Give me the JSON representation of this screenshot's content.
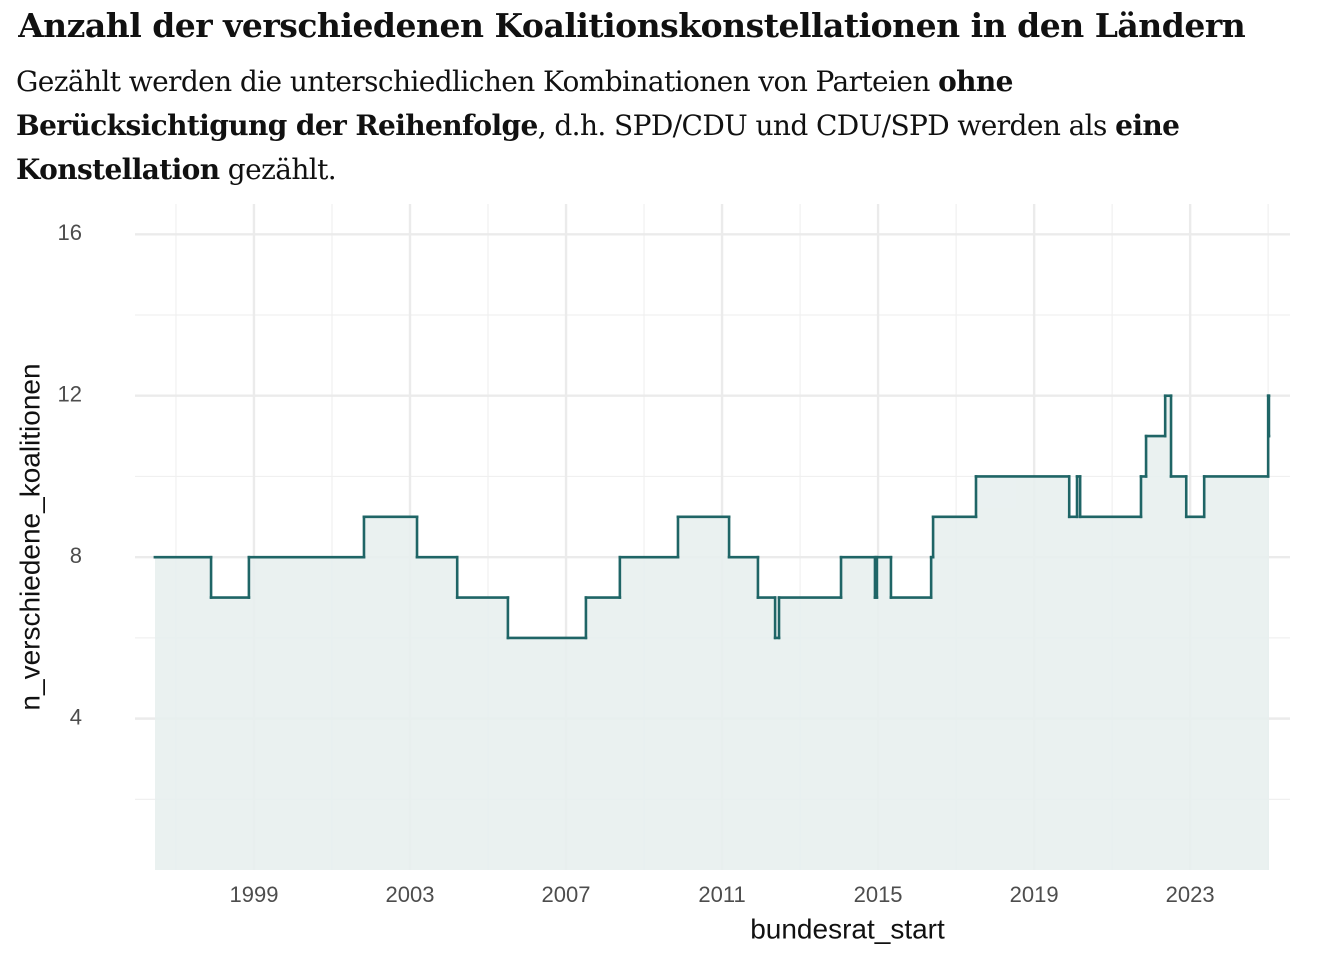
{
  "chart_data": {
    "type": "step-area",
    "title": "Anzahl der verschiedenen Koalitionskonstellationen in den Ländern",
    "subtitle": [
      [
        {
          "text": "Gezählt werden die unterschiedlichen Kombinationen von Parteien ",
          "bold": false
        },
        {
          "text": "ohne",
          "bold": true
        }
      ],
      [
        {
          "text": "Berücksichtigung der Reihenfolge",
          "bold": true
        },
        {
          "text": ", d.h. SPD/CDU und CDU/SPD werden als ",
          "bold": false
        },
        {
          "text": "eine",
          "bold": true
        }
      ],
      [
        {
          "text": "Konstellation",
          "bold": true
        },
        {
          "text": " gezählt.",
          "bold": false
        }
      ]
    ],
    "x_label": "bundesrat_start",
    "y_label": "n_verschiedene_koalitionen",
    "x": [
      1996.46,
      1997.9,
      1998.87,
      2001.82,
      2003.18,
      2004.21,
      2005.51,
      2007.51,
      2008.38,
      2009.87,
      2011.18,
      2011.92,
      2012.36,
      2012.46,
      2014.05,
      2014.92,
      2014.97,
      2015.33,
      2016.36,
      2016.41,
      2017.51,
      2019.9,
      2020.1,
      2020.18,
      2021.74,
      2021.87,
      2022.36,
      2022.51,
      2022.9,
      2023.36,
      2025.0,
      2025.02
    ],
    "values": [
      8,
      7,
      8,
      9,
      8,
      7,
      6,
      7,
      8,
      9,
      8,
      7,
      6,
      7,
      8,
      7,
      8,
      7,
      8,
      9,
      10,
      9,
      10,
      9,
      10,
      11,
      12,
      10,
      9,
      10,
      12,
      11
    ],
    "line_color": "#1f6566",
    "fill_color": "#e8f0ef",
    "xlim": [
      1995.95,
      2025.56
    ],
    "xticks": [
      1999,
      2003,
      2007,
      2011,
      2015,
      2019,
      2023
    ],
    "x_minor_ticks": [
      1997,
      2001,
      2005,
      2009,
      2013,
      2017,
      2021,
      2025
    ],
    "ylim": [
      0.25,
      16.75
    ],
    "yticks": [
      4,
      8,
      12,
      16
    ],
    "y_minor_ticks": [
      2,
      6,
      10,
      14
    ],
    "grid": true
  }
}
